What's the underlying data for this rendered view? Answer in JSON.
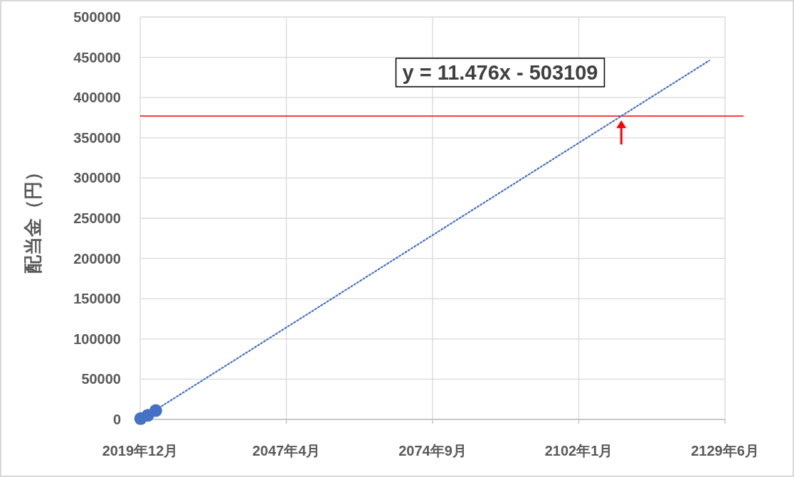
{
  "chart_data": {
    "type": "scatter",
    "ylabel": "配当金（円）",
    "xlim": [
      "2019-12-01",
      "2129-06-07"
    ],
    "xticks": [
      {
        "value": "2019-12-01",
        "label": "2019年12月"
      },
      {
        "value": "2047-04-18",
        "label": "2047年4月"
      },
      {
        "value": "2074-09-03",
        "label": "2074年9月"
      },
      {
        "value": "2102-01-20",
        "label": "2102年1月"
      },
      {
        "value": "2129-06-07",
        "label": "2129年6月"
      }
    ],
    "ylim": [
      0,
      500000
    ],
    "yticks": [
      0,
      50000,
      100000,
      150000,
      200000,
      250000,
      300000,
      350000,
      400000,
      450000,
      500000
    ],
    "grid": true,
    "marker": "circle",
    "series": [
      {
        "type": "scatter",
        "color": "#4472c4",
        "x": [
          "2020-01",
          "2021-05",
          "2022-11"
        ],
        "values": [
          1000,
          5000,
          11000
        ]
      },
      {
        "type": "line",
        "line_style": "dotted",
        "marker": "none",
        "color": "#4472c4",
        "x": [
          "2020-01",
          "2126-07"
        ],
        "values": [
          0,
          446000
        ]
      }
    ],
    "ref_lines": [
      {
        "axis": "y",
        "value": 377000,
        "color": "#ff0000"
      }
    ],
    "annotations": [
      "y = 11.476x - 503109"
    ]
  }
}
